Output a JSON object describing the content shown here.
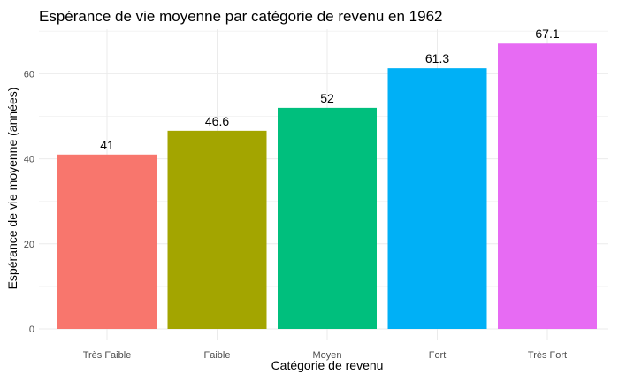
{
  "chart_data": {
    "type": "bar",
    "title": "Espérance de vie moyenne par catégorie de revenu en 1962",
    "xlabel": "Catégorie de revenu",
    "ylabel": "Espérance de vie moyenne (années)",
    "categories": [
      "Très Faible",
      "Faible",
      "Moyen",
      "Fort",
      "Très Fort"
    ],
    "values": [
      41,
      46.6,
      52,
      61.3,
      67.1
    ],
    "data_labels": [
      "41",
      "46.6",
      "52",
      "61.3",
      "67.1"
    ],
    "colors": [
      "#F8766D",
      "#A3A500",
      "#00BF7D",
      "#00B0F6",
      "#E76BF3"
    ],
    "y_ticks": [
      0,
      20,
      40,
      60
    ],
    "y_tick_labels": [
      "0",
      "20",
      "40",
      "60"
    ],
    "ylim": [
      0,
      70
    ],
    "grid": true,
    "legend": "none"
  }
}
